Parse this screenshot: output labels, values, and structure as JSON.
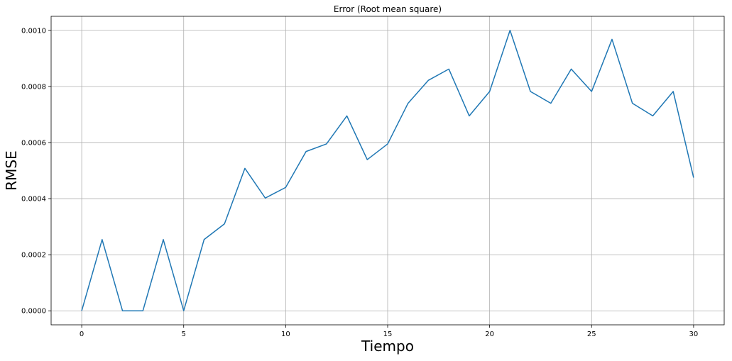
{
  "chart_data": {
    "type": "line",
    "title": "Error (Root mean square)",
    "xlabel": "Tiempo",
    "ylabel": "RMSE",
    "xlim": [
      -1.5,
      31.5
    ],
    "ylim": [
      -5e-05,
      0.00105
    ],
    "x_ticks": [
      0,
      5,
      10,
      15,
      20,
      25,
      30
    ],
    "y_ticks": [
      0.0,
      0.0002,
      0.0004,
      0.0006,
      0.0008,
      0.001
    ],
    "y_tick_labels": [
      "0.0000",
      "0.0002",
      "0.0004",
      "0.0006",
      "0.0008",
      "0.0010"
    ],
    "grid": true,
    "legend": "none",
    "series": [
      {
        "color": "#1f77b4",
        "x": [
          0,
          1,
          2,
          3,
          4,
          5,
          6,
          7,
          8,
          9,
          10,
          11,
          12,
          13,
          14,
          15,
          16,
          17,
          18,
          19,
          20,
          21,
          22,
          23,
          24,
          25,
          26,
          27,
          28,
          29,
          30
        ],
        "y": [
          0.0,
          0.000254,
          0.0,
          0.0,
          0.000254,
          0.0,
          0.000254,
          0.00031,
          0.000508,
          0.000402,
          0.00044,
          0.000568,
          0.000595,
          0.000695,
          0.000539,
          0.000595,
          0.00074,
          0.000822,
          0.000862,
          0.000695,
          0.000782,
          0.001,
          0.000782,
          0.00074,
          0.000862,
          0.000782,
          0.000968,
          0.00074,
          0.000695,
          0.000782,
          0.000475
        ]
      }
    ]
  }
}
